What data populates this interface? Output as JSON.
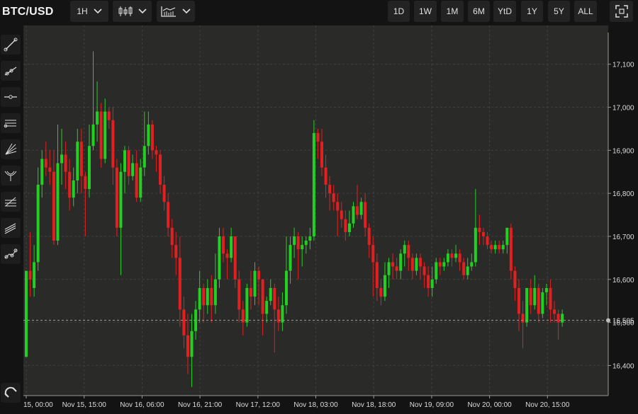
{
  "toolbar": {
    "symbol": "BTC/USD",
    "interval": "1H",
    "chart_type_icon": "candlestick-icon",
    "indicators_icon": "indicators-icon",
    "ranges": [
      "1D",
      "1W",
      "1M",
      "6M",
      "YtD",
      "1Y",
      "5Y",
      "ALL"
    ],
    "fullscreen_icon": "fullscreen-icon"
  },
  "drawing_tools": [
    "trend-line-icon",
    "ray-icon",
    "horizontal-line-icon",
    "parallel-channel-icon",
    "fib-fan-icon",
    "pitchfork-icon",
    "fib-retracement-icon",
    "regression-channel-icon",
    "multi-point-icon"
  ],
  "magnet_icon": "magnet-icon",
  "colors": {
    "up": "#22d022",
    "down": "#e31f1f",
    "background": "#2a2b29",
    "grid": "#3f403d"
  },
  "chart_data": {
    "type": "candlestick",
    "title": "",
    "xlabel": "",
    "ylabel": "",
    "x_tick_labels": [
      "15, 00:00",
      "Nov 15, 15:00",
      "Nov 16, 06:00",
      "Nov 16, 21:00",
      "Nov 17, 12:00",
      "Nov 18, 03:00",
      "Nov 18, 18:00",
      "Nov 19, 09:00",
      "Nov 20, 00:00",
      "Nov 20, 15:00"
    ],
    "y_tick_labels": [
      "17,100",
      "17,000",
      "16,900",
      "16,800",
      "16,700",
      "16,600",
      "16,500",
      "16,400"
    ],
    "y_ticks": [
      17100,
      17000,
      16900,
      16800,
      16700,
      16600,
      16500,
      16400
    ],
    "ylim": [
      16330,
      17190
    ],
    "current_price_label": "16,505",
    "current_price": 16505,
    "grid": true,
    "candles": [
      [
        16420,
        16620,
        16420,
        16620
      ],
      [
        16620,
        16600,
        16560,
        16710
      ],
      [
        16580,
        16640,
        16560,
        16680
      ],
      [
        16640,
        16820,
        16620,
        16860
      ],
      [
        16820,
        16880,
        16790,
        16900
      ],
      [
        16880,
        16860,
        16840,
        16920
      ],
      [
        16860,
        16850,
        16820,
        16900
      ],
      [
        16850,
        16690,
        16680,
        16900
      ],
      [
        16690,
        16870,
        16680,
        16960
      ],
      [
        16870,
        16890,
        16820,
        16950
      ],
      [
        16890,
        16850,
        16810,
        16920
      ],
      [
        16850,
        16790,
        16760,
        16880
      ],
      [
        16790,
        16830,
        16770,
        16860
      ],
      [
        16830,
        16920,
        16800,
        16950
      ],
      [
        16920,
        16840,
        16800,
        16950
      ],
      [
        16840,
        16810,
        16700,
        16850
      ],
      [
        16810,
        16910,
        16790,
        16960
      ],
      [
        16910,
        16960,
        16900,
        17130
      ],
      [
        16960,
        16990,
        16920,
        17060
      ],
      [
        16990,
        16880,
        16860,
        17010
      ],
      [
        16880,
        16990,
        16870,
        17020
      ],
      [
        16990,
        16970,
        16950,
        17000
      ],
      [
        16970,
        16860,
        16820,
        17000
      ],
      [
        16860,
        16720,
        16700,
        16880
      ],
      [
        16720,
        16850,
        16610,
        16870
      ],
      [
        16850,
        16900,
        16800,
        16910
      ],
      [
        16900,
        16840,
        16820,
        16910
      ],
      [
        16840,
        16870,
        16830,
        16890
      ],
      [
        16870,
        16790,
        16780,
        16900
      ],
      [
        16790,
        16860,
        16780,
        16880
      ],
      [
        16860,
        16910,
        16840,
        16990
      ],
      [
        16910,
        16960,
        16890,
        16990
      ],
      [
        16960,
        16900,
        16880,
        16970
      ],
      [
        16900,
        16890,
        16850,
        16910
      ],
      [
        16890,
        16820,
        16800,
        16900
      ],
      [
        16820,
        16780,
        16760,
        16840
      ],
      [
        16780,
        16720,
        16700,
        16800
      ],
      [
        16720,
        16680,
        16650,
        16740
      ],
      [
        16680,
        16650,
        16610,
        16710
      ],
      [
        16650,
        16530,
        16490,
        16700
      ],
      [
        16530,
        16470,
        16440,
        16560
      ],
      [
        16470,
        16420,
        16380,
        16520
      ],
      [
        16420,
        16480,
        16350,
        16520
      ],
      [
        16480,
        16530,
        16460,
        16550
      ],
      [
        16530,
        16580,
        16500,
        16620
      ],
      [
        16580,
        16540,
        16500,
        16590
      ],
      [
        16540,
        16580,
        16520,
        16600
      ],
      [
        16580,
        16540,
        16500,
        16610
      ],
      [
        16540,
        16600,
        16520,
        16660
      ],
      [
        16600,
        16700,
        16580,
        16720
      ],
      [
        16700,
        16660,
        16640,
        16720
      ],
      [
        16660,
        16650,
        16600,
        16670
      ],
      [
        16650,
        16700,
        16640,
        16720
      ],
      [
        16700,
        16600,
        16580,
        16700
      ],
      [
        16600,
        16530,
        16500,
        16620
      ],
      [
        16530,
        16500,
        16470,
        16550
      ],
      [
        16500,
        16580,
        16490,
        16590
      ],
      [
        16580,
        16560,
        16530,
        16620
      ],
      [
        16560,
        16620,
        16540,
        16640
      ],
      [
        16620,
        16600,
        16540,
        16630
      ],
      [
        16600,
        16520,
        16470,
        16600
      ],
      [
        16520,
        16550,
        16500,
        16560
      ],
      [
        16550,
        16580,
        16540,
        16600
      ],
      [
        16580,
        16530,
        16430,
        16590
      ],
      [
        16530,
        16500,
        16480,
        16560
      ],
      [
        16500,
        16540,
        16480,
        16570
      ],
      [
        16540,
        16620,
        16520,
        16700
      ],
      [
        16620,
        16680,
        16590,
        16700
      ],
      [
        16680,
        16700,
        16650,
        16720
      ],
      [
        16700,
        16670,
        16600,
        16710
      ],
      [
        16670,
        16680,
        16630,
        16700
      ],
      [
        16680,
        16690,
        16660,
        16700
      ],
      [
        16690,
        16700,
        16670,
        16720
      ],
      [
        16700,
        16940,
        16690,
        16970
      ],
      [
        16940,
        16920,
        16880,
        16950
      ],
      [
        16920,
        16860,
        16840,
        16950
      ],
      [
        16860,
        16820,
        16790,
        16890
      ],
      [
        16820,
        16800,
        16760,
        16840
      ],
      [
        16800,
        16780,
        16760,
        16820
      ],
      [
        16780,
        16760,
        16700,
        16800
      ],
      [
        16760,
        16740,
        16720,
        16780
      ],
      [
        16740,
        16710,
        16690,
        16760
      ],
      [
        16710,
        16730,
        16700,
        16760
      ],
      [
        16730,
        16770,
        16720,
        16780
      ],
      [
        16770,
        16750,
        16740,
        16820
      ],
      [
        16750,
        16780,
        16740,
        16790
      ],
      [
        16780,
        16720,
        16700,
        16800
      ],
      [
        16720,
        16680,
        16650,
        16730
      ],
      [
        16680,
        16640,
        16560,
        16700
      ],
      [
        16640,
        16580,
        16550,
        16660
      ],
      [
        16580,
        16560,
        16540,
        16600
      ],
      [
        16560,
        16610,
        16550,
        16640
      ],
      [
        16610,
        16640,
        16580,
        16650
      ],
      [
        16640,
        16630,
        16600,
        16660
      ],
      [
        16630,
        16620,
        16600,
        16650
      ],
      [
        16620,
        16660,
        16600,
        16670
      ],
      [
        16660,
        16680,
        16630,
        16690
      ],
      [
        16680,
        16650,
        16620,
        16690
      ],
      [
        16650,
        16620,
        16600,
        16660
      ],
      [
        16620,
        16650,
        16610,
        16660
      ],
      [
        16650,
        16630,
        16600,
        16660
      ],
      [
        16630,
        16610,
        16580,
        16640
      ],
      [
        16610,
        16580,
        16560,
        16630
      ],
      [
        16580,
        16600,
        16560,
        16630
      ],
      [
        16600,
        16640,
        16590,
        16650
      ],
      [
        16640,
        16630,
        16610,
        16650
      ],
      [
        16630,
        16640,
        16620,
        16650
      ],
      [
        16640,
        16660,
        16630,
        16670
      ],
      [
        16660,
        16650,
        16630,
        16670
      ],
      [
        16650,
        16660,
        16640,
        16680
      ],
      [
        16660,
        16640,
        16620,
        16670
      ],
      [
        16640,
        16610,
        16600,
        16650
      ],
      [
        16610,
        16630,
        16600,
        16650
      ],
      [
        16630,
        16640,
        16620,
        16660
      ],
      [
        16640,
        16720,
        16630,
        16810
      ],
      [
        16720,
        16710,
        16680,
        16750
      ],
      [
        16710,
        16700,
        16680,
        16720
      ],
      [
        16700,
        16680,
        16670,
        16710
      ],
      [
        16680,
        16670,
        16660,
        16690
      ],
      [
        16670,
        16680,
        16660,
        16690
      ],
      [
        16680,
        16670,
        16660,
        16690
      ],
      [
        16670,
        16680,
        16660,
        16690
      ],
      [
        16680,
        16720,
        16660,
        16720
      ],
      [
        16720,
        16620,
        16600,
        16730
      ],
      [
        16620,
        16580,
        16550,
        16630
      ],
      [
        16580,
        16520,
        16480,
        16600
      ],
      [
        16520,
        16500,
        16440,
        16550
      ],
      [
        16500,
        16580,
        16490,
        16580
      ],
      [
        16580,
        16540,
        16520,
        16600
      ],
      [
        16540,
        16580,
        16530,
        16610
      ],
      [
        16580,
        16520,
        16500,
        16590
      ],
      [
        16520,
        16570,
        16510,
        16580
      ],
      [
        16570,
        16580,
        16540,
        16590
      ],
      [
        16580,
        16530,
        16500,
        16600
      ],
      [
        16530,
        16520,
        16500,
        16550
      ],
      [
        16520,
        16500,
        16460,
        16530
      ],
      [
        16500,
        16520,
        16490,
        16530
      ]
    ]
  }
}
